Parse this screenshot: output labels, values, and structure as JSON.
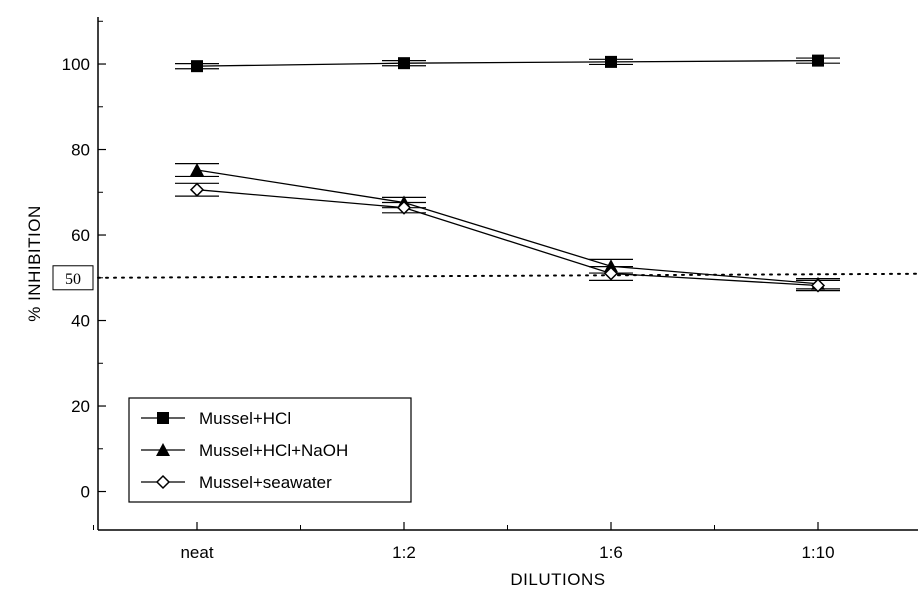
{
  "chart_data": {
    "type": "line",
    "title": "",
    "xlabel": "DILUTIONS",
    "ylabel": "% INHIBITION",
    "categories": [
      "neat",
      "1:2",
      "1:6",
      "1:10"
    ],
    "y_ticks": [
      0,
      20,
      40,
      60,
      80,
      100
    ],
    "ylim": [
      -9,
      111
    ],
    "grid": false,
    "legend_position": "bottom-left",
    "reference_line": {
      "value": 50,
      "label": "50",
      "style": "dotted"
    },
    "series": [
      {
        "name": "Mussel+HCl",
        "marker": "filled-square",
        "values": [
          99.5,
          100.2,
          100.5,
          100.8
        ],
        "errors": [
          0.6,
          0.6,
          0.6,
          0.6
        ]
      },
      {
        "name": "Mussel+HCl+NaOH",
        "marker": "filled-triangle",
        "values": [
          75.2,
          67.6,
          52.7,
          48.6
        ],
        "errors": [
          1.5,
          1.2,
          1.6,
          1.2
        ]
      },
      {
        "name": "Mussel+seawater",
        "marker": "open-diamond",
        "values": [
          70.6,
          66.4,
          51.0,
          48.2
        ],
        "errors": [
          1.5,
          1.2,
          1.6,
          1.2
        ]
      }
    ]
  }
}
